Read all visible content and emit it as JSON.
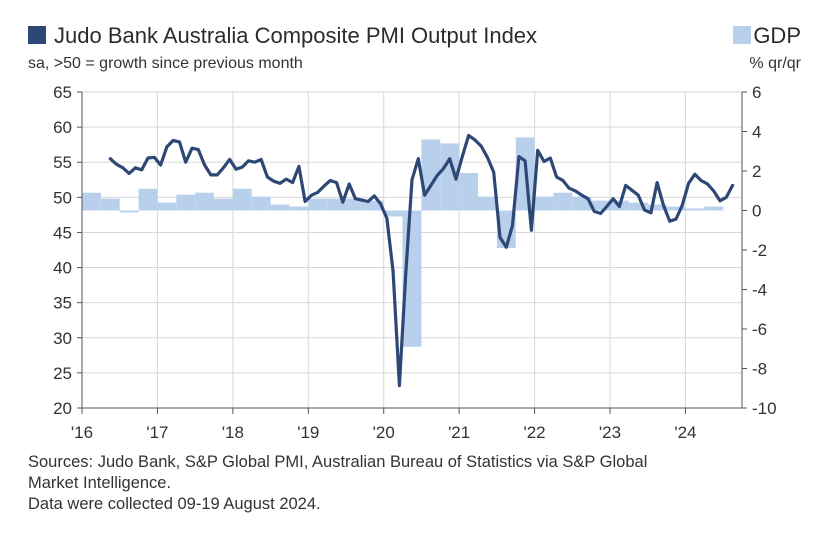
{
  "chart_data": {
    "type": "line+bar",
    "title": "Judo Bank Australia Composite PMI Output Index",
    "subtitle": "sa, >50 = growth since previous month",
    "gdp_legend": "GDP",
    "gdp_unit": "% qr/qr",
    "left_axis": {
      "ticks": [
        20,
        25,
        30,
        35,
        40,
        45,
        50,
        55,
        60,
        65
      ],
      "range": [
        20,
        65
      ]
    },
    "right_axis": {
      "ticks": [
        -10,
        -8,
        -6,
        -4,
        -2,
        0,
        2,
        4,
        6
      ],
      "range": [
        -10,
        6
      ]
    },
    "x_labels": [
      "'16",
      "'17",
      "'18",
      "'19",
      "'20",
      "'21",
      "'22",
      "'23",
      "'24"
    ],
    "x_range": [
      2016.0,
      2024.75
    ],
    "grid": true,
    "colors": {
      "pmi_line": "#2e4876",
      "gdp_bar": "#b8d0ec",
      "grid": "#d8d8d8"
    },
    "series": [
      {
        "name": "Judo Bank Australia Composite PMI Output Index",
        "axis": "left",
        "type": "line",
        "x": [
          2016.375,
          2016.458,
          2016.542,
          2016.625,
          2016.708,
          2016.792,
          2016.875,
          2016.958,
          2017.042,
          2017.125,
          2017.208,
          2017.292,
          2017.375,
          2017.458,
          2017.542,
          2017.625,
          2017.708,
          2017.792,
          2017.875,
          2017.958,
          2018.042,
          2018.125,
          2018.208,
          2018.292,
          2018.375,
          2018.458,
          2018.542,
          2018.625,
          2018.708,
          2018.792,
          2018.875,
          2018.958,
          2019.042,
          2019.125,
          2019.208,
          2019.292,
          2019.375,
          2019.458,
          2019.542,
          2019.625,
          2019.708,
          2019.792,
          2019.875,
          2019.958,
          2020.042,
          2020.125,
          2020.208,
          2020.292,
          2020.375,
          2020.458,
          2020.542,
          2020.625,
          2020.708,
          2020.792,
          2020.875,
          2020.958,
          2021.042,
          2021.125,
          2021.208,
          2021.292,
          2021.375,
          2021.458,
          2021.542,
          2021.625,
          2021.708,
          2021.792,
          2021.875,
          2021.958,
          2022.042,
          2022.125,
          2022.208,
          2022.292,
          2022.375,
          2022.458,
          2022.542,
          2022.625,
          2022.708,
          2022.792,
          2022.875,
          2022.958,
          2023.042,
          2023.125,
          2023.208,
          2023.292,
          2023.375,
          2023.458,
          2023.542,
          2023.625,
          2023.708,
          2023.792,
          2023.875,
          2023.958,
          2024.042,
          2024.125,
          2024.208,
          2024.292,
          2024.375,
          2024.458,
          2024.542,
          2024.625
        ],
        "values": [
          55.5,
          54.7,
          54.2,
          53.4,
          54.2,
          53.9,
          55.6,
          55.7,
          54.6,
          57.2,
          58.1,
          57.9,
          55.0,
          57.0,
          56.8,
          54.6,
          53.2,
          53.2,
          54.2,
          55.4,
          54.0,
          54.3,
          55.2,
          55.0,
          55.4,
          52.9,
          52.3,
          52.0,
          52.6,
          52.1,
          54.4,
          49.4,
          50.3,
          50.7,
          51.6,
          52.4,
          52.1,
          49.3,
          51.9,
          49.8,
          49.6,
          49.4,
          50.2,
          49.1,
          47.0,
          39.4,
          23.2,
          39.0,
          52.5,
          55.5,
          50.3,
          51.7,
          53.1,
          54.1,
          55.5,
          52.6,
          55.8,
          58.8,
          58.2,
          57.3,
          55.7,
          53.6,
          44.3,
          42.9,
          46.0,
          55.8,
          55.2,
          45.3,
          56.7,
          55.1,
          55.6,
          52.9,
          52.4,
          51.3,
          50.9,
          50.3,
          49.8,
          48.0,
          47.7,
          48.7,
          49.8,
          48.7,
          51.7,
          51.0,
          50.3,
          48.2,
          47.8,
          52.1,
          48.9,
          46.6,
          46.9,
          48.9,
          52.0,
          53.3,
          52.4,
          51.9,
          50.9,
          49.5,
          50.0,
          51.7
        ]
      },
      {
        "name": "GDP",
        "axis": "right",
        "type": "bar",
        "x": [
          2016.0,
          2016.25,
          2016.5,
          2016.75,
          2017.0,
          2017.25,
          2017.5,
          2017.75,
          2018.0,
          2018.25,
          2018.5,
          2018.75,
          2019.0,
          2019.25,
          2019.5,
          2019.75,
          2020.0,
          2020.25,
          2020.5,
          2020.75,
          2021.0,
          2021.25,
          2021.5,
          2021.75,
          2022.0,
          2022.25,
          2022.5,
          2022.75,
          2023.0,
          2023.25,
          2023.5,
          2023.75,
          2024.0,
          2024.25
        ],
        "values": [
          0.9,
          0.6,
          -0.1,
          1.1,
          0.4,
          0.8,
          0.9,
          0.6,
          1.1,
          0.7,
          0.3,
          0.2,
          0.6,
          0.6,
          0.6,
          0.5,
          -0.3,
          -6.9,
          3.6,
          3.4,
          1.9,
          0.7,
          -1.9,
          3.7,
          0.7,
          0.9,
          0.7,
          0.5,
          0.5,
          0.4,
          0.3,
          0.2,
          0.1,
          0.2
        ]
      }
    ],
    "sources": [
      "Sources: Judo Bank, S&P Global PMI, Australian Bureau of Statistics via S&P Global",
      "Market Intelligence.",
      "Data were collected 09-19 August 2024."
    ]
  }
}
